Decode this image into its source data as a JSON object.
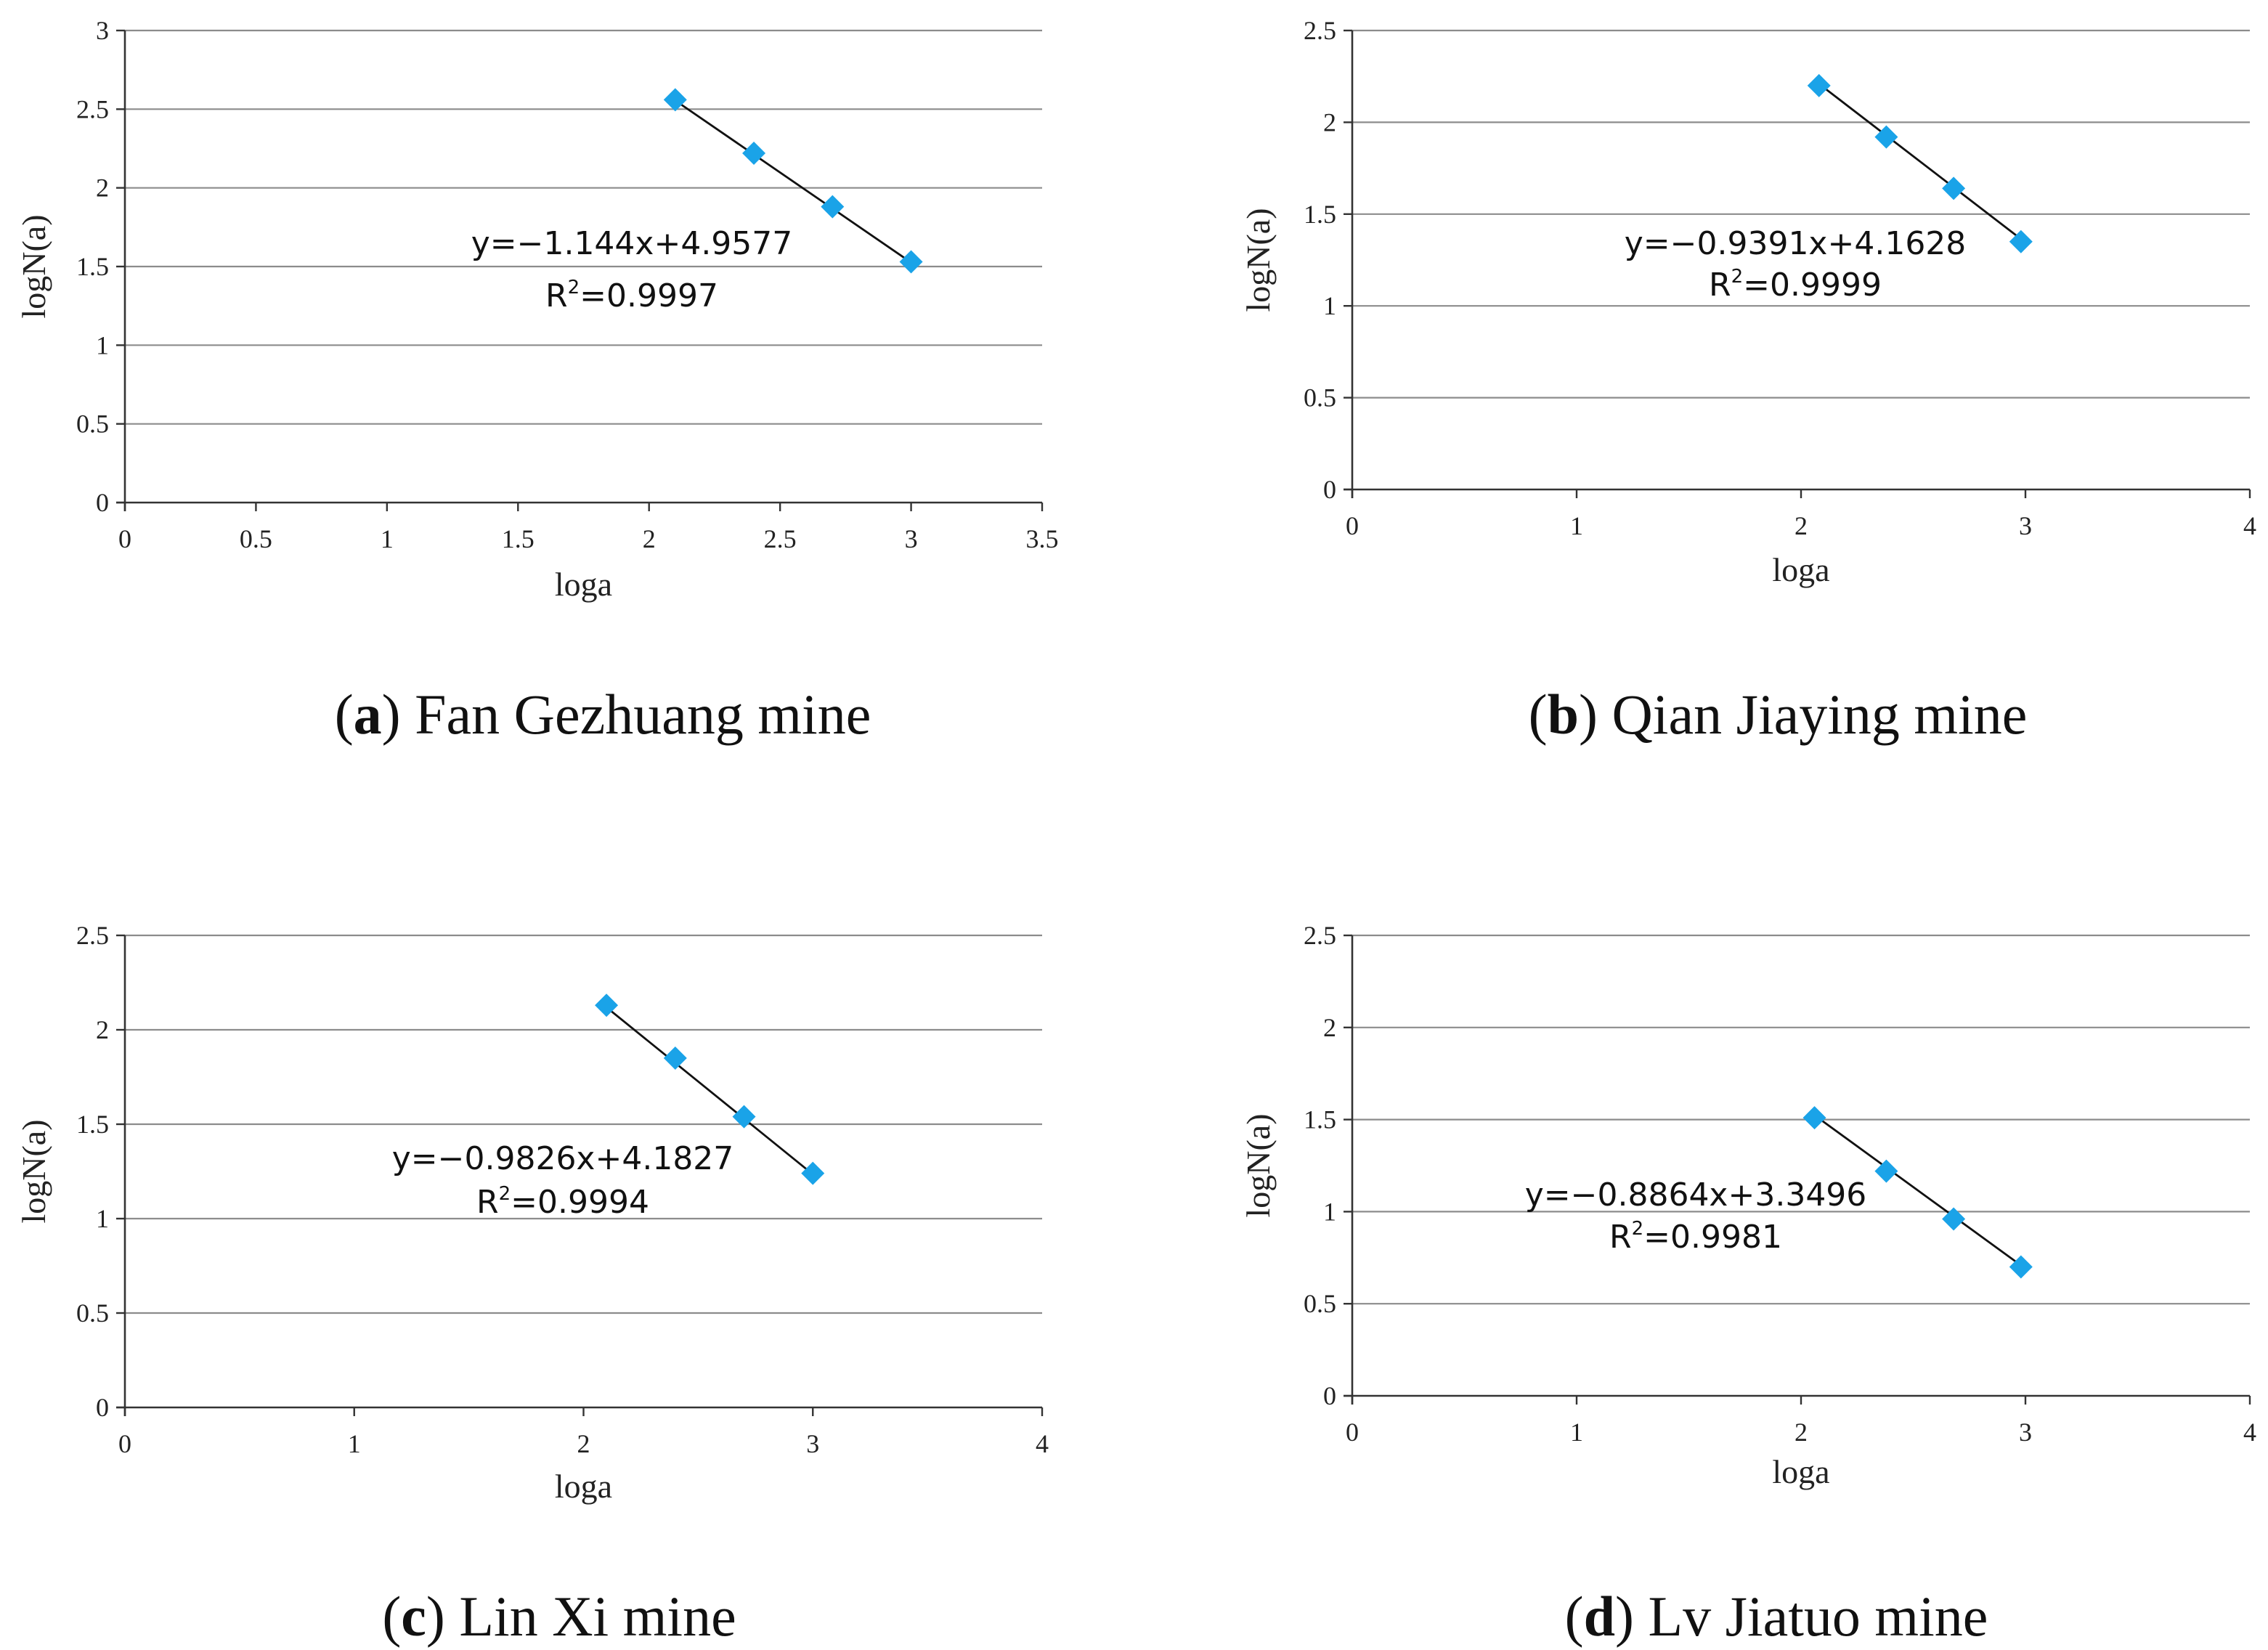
{
  "chart_data": [
    {
      "type": "scatter",
      "panel": "a",
      "caption_letter": "a",
      "caption_text": "Fan Gezhuang mine",
      "xlabel": "loga",
      "ylabel": "logN(a)",
      "xlim": [
        0,
        3.5
      ],
      "ylim": [
        0,
        3
      ],
      "x_ticks": [
        "0",
        "0.5",
        "1",
        "1.5",
        "2",
        "2.5",
        "3",
        "3.5"
      ],
      "y_ticks": [
        "0",
        "0.5",
        "1",
        "1.5",
        "2",
        "2.5",
        "3"
      ],
      "x_tick_values": [
        0,
        0.5,
        1,
        1.5,
        2,
        2.5,
        3,
        3.5
      ],
      "y_tick_values": [
        0,
        0.5,
        1,
        1.5,
        2,
        2.5,
        3
      ],
      "x": [
        2.1,
        2.4,
        2.7,
        3.0
      ],
      "y": [
        2.56,
        2.22,
        1.88,
        1.53
      ],
      "marker_color": "#1aa3e8",
      "trend": {
        "slope": -1.144,
        "intercept": 4.9577,
        "x_range": [
          2.1,
          3.0
        ]
      },
      "equation": "y=−1.144x+4.9577",
      "r2_prefix": "R",
      "r2_sup": "2",
      "r2_value": "=0.9997"
    },
    {
      "type": "scatter",
      "panel": "b",
      "caption_letter": "b",
      "caption_text": "Qian Jiaying mine",
      "xlabel": "loga",
      "ylabel": "logN(a)",
      "xlim": [
        0,
        4
      ],
      "ylim": [
        0,
        2.5
      ],
      "x_ticks": [
        "0",
        "1",
        "2",
        "3",
        "4"
      ],
      "y_ticks": [
        "0",
        "0.5",
        "1",
        "1.5",
        "2",
        "2.5"
      ],
      "x_tick_values": [
        0,
        1,
        2,
        3,
        4
      ],
      "y_tick_values": [
        0,
        0.5,
        1,
        1.5,
        2,
        2.5
      ],
      "x": [
        2.08,
        2.38,
        2.68,
        2.98
      ],
      "y": [
        2.2,
        1.92,
        1.64,
        1.35
      ],
      "marker_color": "#1aa3e8",
      "trend": {
        "slope": -0.9391,
        "intercept": 4.1628,
        "x_range": [
          2.08,
          2.98
        ]
      },
      "equation": "y=−0.9391x+4.1628",
      "r2_prefix": "R",
      "r2_sup": "2",
      "r2_value": "=0.9999"
    },
    {
      "type": "scatter",
      "panel": "c",
      "caption_letter": "c",
      "caption_text": "Lin Xi mine",
      "xlabel": "loga",
      "ylabel": "logN(a)",
      "xlim": [
        0,
        4
      ],
      "ylim": [
        0,
        2.5
      ],
      "x_ticks": [
        "0",
        "1",
        "2",
        "3",
        "4"
      ],
      "y_ticks": [
        "0",
        "0.5",
        "1",
        "1.5",
        "2",
        "2.5"
      ],
      "x_tick_values": [
        0,
        1,
        2,
        3,
        4
      ],
      "y_tick_values": [
        0,
        0.5,
        1,
        1.5,
        2,
        2.5
      ],
      "x": [
        2.1,
        2.4,
        2.7,
        3.0
      ],
      "y": [
        2.13,
        1.85,
        1.54,
        1.24
      ],
      "marker_color": "#1aa3e8",
      "trend": {
        "slope": -0.9826,
        "intercept": 4.1827,
        "x_range": [
          2.1,
          3.0
        ]
      },
      "equation": "y=−0.9826x+4.1827",
      "r2_prefix": "R",
      "r2_sup": "2",
      "r2_value": "=0.9994"
    },
    {
      "type": "scatter",
      "panel": "d",
      "caption_letter": "d",
      "caption_text": "Lv Jiatuo mine",
      "xlabel": "loga",
      "ylabel": "logN(a)",
      "xlim": [
        0,
        4
      ],
      "ylim": [
        0,
        2.5
      ],
      "x_ticks": [
        "0",
        "1",
        "2",
        "3",
        "4"
      ],
      "y_ticks": [
        "0",
        "0.5",
        "1",
        "1.5",
        "2",
        "2.5"
      ],
      "x_tick_values": [
        0,
        1,
        2,
        3,
        4
      ],
      "y_tick_values": [
        0,
        0.5,
        1,
        1.5,
        2,
        2.5
      ],
      "x": [
        2.06,
        2.38,
        2.68,
        2.98
      ],
      "y": [
        1.51,
        1.22,
        0.96,
        0.7
      ],
      "marker_color": "#1aa3e8",
      "trend": {
        "slope": -0.8864,
        "intercept": 3.3496,
        "x_range": [
          2.06,
          2.98
        ]
      },
      "equation": "y=−0.8864x+3.3496",
      "r2_prefix": "R",
      "r2_sup": "2",
      "r2_value": "=0.9981"
    }
  ]
}
